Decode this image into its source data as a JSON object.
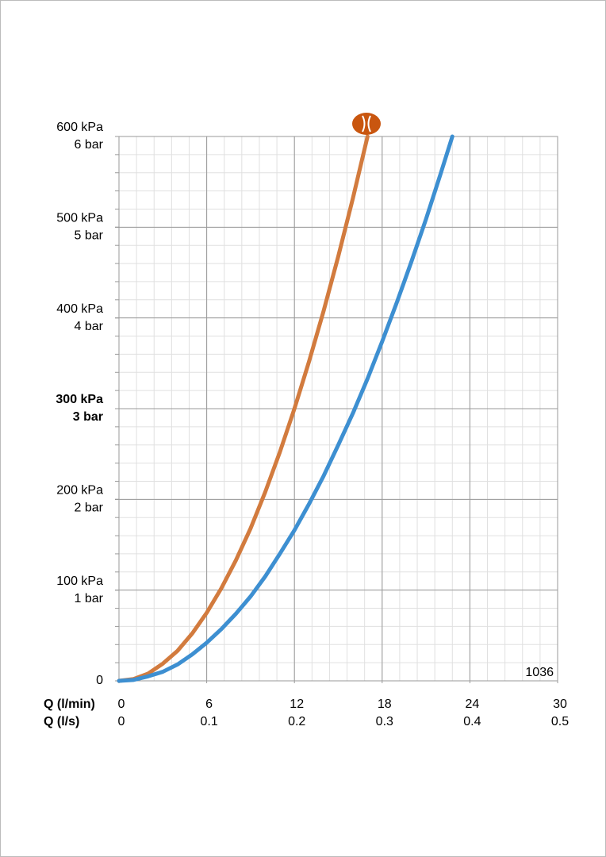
{
  "chart_data": {
    "type": "line",
    "annotation": "1036",
    "xlabel": "Q (l/min)",
    "x2label": "Q (l/s)",
    "xlim": [
      0,
      30
    ],
    "xticks": [
      0,
      6,
      12,
      18,
      24,
      30
    ],
    "x2lim": [
      0,
      0.5
    ],
    "x2ticks": [
      0,
      0.1,
      0.2,
      0.3,
      0.4,
      0.5
    ],
    "ylim": [
      0,
      600
    ],
    "yticks": [
      0,
      {
        "value": 100,
        "label": "100 kPa"
      },
      {
        "value": 200,
        "label": "200 kPa"
      },
      {
        "value": 300,
        "label": "300 kPa"
      },
      {
        "value": 400,
        "label": "400 kPa"
      },
      {
        "value": 500,
        "label": "500 kPa"
      },
      {
        "value": 600,
        "label": "600 kPa"
      }
    ],
    "y2lim": [
      0,
      6
    ],
    "y2ticks": [
      {
        "value": 1,
        "label": "1 bar"
      },
      {
        "value": 2,
        "label": "2 bar"
      },
      {
        "value": 3,
        "label": "3 bar"
      },
      {
        "value": 4,
        "label": "4 bar"
      },
      {
        "value": 5,
        "label": "5 bar"
      },
      {
        "value": 6,
        "label": "6 bar"
      }
    ],
    "bold_ytick_value": 300,
    "grid": true,
    "minor_grid_step": {
      "x": 1.2,
      "y": 20
    },
    "series": [
      {
        "color": "#d27b3e",
        "x": [
          0,
          1,
          2,
          3,
          4,
          5,
          6,
          7,
          8,
          9,
          10,
          11,
          12,
          13,
          14,
          15,
          16,
          17
        ],
        "values": [
          0,
          2,
          8,
          19,
          33,
          52,
          75,
          102,
          133,
          168,
          208,
          252,
          300,
          352,
          408,
          468,
          532,
          600
        ]
      },
      {
        "color": "#3d8fd1",
        "x": [
          0,
          1,
          2,
          3,
          4,
          5,
          6,
          7,
          8,
          9,
          10,
          11,
          12,
          13,
          14,
          15,
          16,
          17,
          18,
          19,
          20,
          21,
          22,
          22.8
        ],
        "values": [
          0,
          1,
          5,
          10,
          18,
          29,
          42,
          57,
          74,
          93,
          115,
          140,
          166,
          195,
          226,
          260,
          295,
          333,
          374,
          417,
          462,
          509,
          559,
          600
        ]
      }
    ]
  }
}
